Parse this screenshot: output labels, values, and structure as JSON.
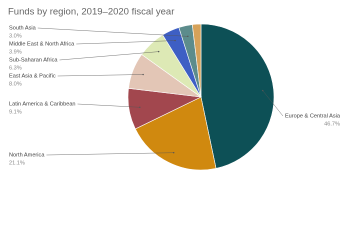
{
  "chart_data": {
    "type": "pie",
    "title": "Funds by region, 2019–2020 fiscal year",
    "categories": [
      "Europe & Central Asia",
      "North America",
      "Latin America & Caribbean",
      "East Asia & Pacific",
      "Sub-Saharan Africa",
      "Middle East & North Africa",
      "South Asia",
      null
    ],
    "values": [
      46.7,
      21.1,
      9.1,
      8.0,
      6.3,
      3.9,
      3.0,
      1.9
    ],
    "value_labels": [
      "46.7%",
      "21.1%",
      "9.1%",
      "8.0%",
      "6.3%",
      "3.9%",
      "3.0%",
      null
    ],
    "colors": [
      "#0d5056",
      "#d0890f",
      "#a2474e",
      "#e3c6b6",
      "#dde9b5",
      "#3e5fc4",
      "#5c8c8c",
      "#d6a25a"
    ]
  }
}
